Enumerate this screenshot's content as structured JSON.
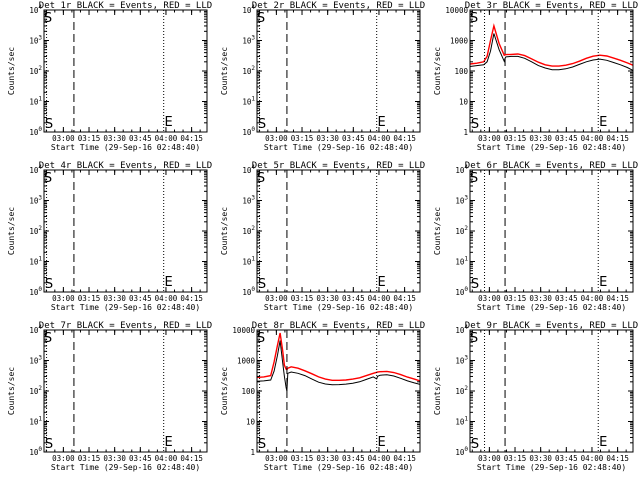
{
  "chart_data": [
    {
      "type": "line",
      "title": "Det 1r BLACK = Events, RED = LLD",
      "xlabel": "Start Time (29-Sep-16 02:48:40)",
      "ylabel": "Counts/sec",
      "x_unit": "minutes after 02:48:40",
      "xlim": [
        0,
        95.33
      ],
      "xtick_labels": [
        "03:00",
        "03:15",
        "03:30",
        "03:45",
        "04:00",
        "04:15"
      ],
      "xtick_values": [
        11.33,
        26.33,
        41.33,
        56.33,
        71.33,
        86.33
      ],
      "yscale": "log",
      "ylim": [
        1,
        10000
      ],
      "ytick_labels": [
        "10^0",
        "10^1",
        "10^2",
        "10^3",
        "10^4"
      ],
      "ytick_values": [
        1,
        10,
        100,
        1000,
        10000
      ],
      "vlines": [
        {
          "x": 1.5,
          "style": "dotted"
        },
        {
          "x": 17.5,
          "style": "dashed"
        },
        {
          "x": 70.0,
          "style": "dotted"
        }
      ],
      "markers": [
        {
          "label": "S",
          "x": 0.5
        },
        {
          "label": "E",
          "x": 70.5
        }
      ],
      "series": []
    },
    {
      "type": "line",
      "title": "Det 2r BLACK = Events, RED = LLD",
      "xlabel": "Start Time (29-Sep-16 02:48:40)",
      "ylabel": "Counts/sec",
      "x_unit": "minutes after 02:48:40",
      "xlim": [
        0,
        95.33
      ],
      "xtick_labels": [
        "03:00",
        "03:15",
        "03:30",
        "03:45",
        "04:00",
        "04:15"
      ],
      "xtick_values": [
        11.33,
        26.33,
        41.33,
        56.33,
        71.33,
        86.33
      ],
      "yscale": "log",
      "ylim": [
        1,
        10000
      ],
      "ytick_labels": [
        "10^0",
        "10^1",
        "10^2",
        "10^3",
        "10^4"
      ],
      "ytick_values": [
        1,
        10,
        100,
        1000,
        10000
      ],
      "vlines": [
        {
          "x": 1.5,
          "style": "dotted"
        },
        {
          "x": 17.5,
          "style": "dashed"
        },
        {
          "x": 70.0,
          "style": "dotted"
        }
      ],
      "markers": [
        {
          "label": "S",
          "x": 0.5
        },
        {
          "label": "E",
          "x": 70.5
        }
      ],
      "series": []
    },
    {
      "type": "line",
      "title": "Det 3r BLACK = Events, RED = LLD",
      "xlabel": "Start Time (29-Sep-16 02:48:40)",
      "ylabel": "Counts/sec",
      "x_unit": "minutes after 02:48:40",
      "xlim": [
        0,
        95.33
      ],
      "xtick_labels": [
        "03:00",
        "03:15",
        "03:30",
        "03:45",
        "04:00",
        "04:15"
      ],
      "xtick_values": [
        11.33,
        26.33,
        41.33,
        56.33,
        71.33,
        86.33
      ],
      "yscale": "log",
      "ylim": [
        1,
        10000
      ],
      "ytick_labels": [
        "1",
        "10",
        "100",
        "1000",
        "10000"
      ],
      "ytick_values": [
        1,
        10,
        100,
        1000,
        10000
      ],
      "vlines": [
        {
          "x": 8.5,
          "style": "dotted"
        },
        {
          "x": 20.5,
          "style": "dashed"
        },
        {
          "x": 75.0,
          "style": "dotted"
        }
      ],
      "markers": [
        {
          "label": "S",
          "x": 0.5
        },
        {
          "label": "E",
          "x": 75.5
        }
      ],
      "series": [
        {
          "name": "Events",
          "color": "#000000",
          "x": [
            0,
            4,
            8,
            10,
            12,
            14,
            17,
            20,
            20.5,
            21,
            24,
            28,
            32,
            36,
            40,
            44,
            48,
            52,
            56,
            60,
            64,
            68,
            72,
            76,
            80,
            84,
            88,
            92,
            95.33
          ],
          "y": [
            140,
            150,
            160,
            200,
            450,
            1700,
            500,
            210,
            260,
            290,
            300,
            300,
            260,
            200,
            150,
            125,
            110,
            110,
            118,
            135,
            165,
            200,
            230,
            245,
            225,
            190,
            160,
            130,
            105
          ]
        },
        {
          "name": "LLD",
          "color": "#ff0000",
          "x": [
            0,
            4,
            8,
            10,
            12,
            14,
            17,
            20,
            20.5,
            21,
            24,
            28,
            32,
            36,
            40,
            44,
            48,
            52,
            56,
            60,
            64,
            68,
            72,
            76,
            80,
            84,
            88,
            92,
            95.33
          ],
          "y": [
            170,
            180,
            200,
            300,
            1000,
            3000,
            800,
            330,
            340,
            345,
            350,
            360,
            320,
            250,
            195,
            160,
            145,
            145,
            155,
            175,
            210,
            260,
            305,
            330,
            310,
            265,
            225,
            185,
            155
          ]
        }
      ]
    },
    {
      "type": "line",
      "title": "Det 4r BLACK = Events, RED = LLD",
      "xlabel": "Start Time (29-Sep-16 02:48:40)",
      "ylabel": "Counts/sec",
      "x_unit": "minutes after 02:48:40",
      "xlim": [
        0,
        95.33
      ],
      "xtick_labels": [
        "03:00",
        "03:15",
        "03:30",
        "03:45",
        "04:00",
        "04:15"
      ],
      "xtick_values": [
        11.33,
        26.33,
        41.33,
        56.33,
        71.33,
        86.33
      ],
      "yscale": "log",
      "ylim": [
        1,
        10000
      ],
      "ytick_labels": [
        "10^0",
        "10^1",
        "10^2",
        "10^3",
        "10^4"
      ],
      "ytick_values": [
        1,
        10,
        100,
        1000,
        10000
      ],
      "vlines": [
        {
          "x": 1.5,
          "style": "dotted"
        },
        {
          "x": 17.5,
          "style": "dashed"
        },
        {
          "x": 70.0,
          "style": "dotted"
        }
      ],
      "markers": [
        {
          "label": "S",
          "x": 0.5
        },
        {
          "label": "E",
          "x": 70.5
        }
      ],
      "series": []
    },
    {
      "type": "line",
      "title": "Det 5r BLACK = Events, RED = LLD",
      "xlabel": "Start Time (29-Sep-16 02:48:40)",
      "ylabel": "Counts/sec",
      "x_unit": "minutes after 02:48:40",
      "xlim": [
        0,
        95.33
      ],
      "xtick_labels": [
        "03:00",
        "03:15",
        "03:30",
        "03:45",
        "04:00",
        "04:15"
      ],
      "xtick_values": [
        11.33,
        26.33,
        41.33,
        56.33,
        71.33,
        86.33
      ],
      "yscale": "log",
      "ylim": [
        1,
        10000
      ],
      "ytick_labels": [
        "10^0",
        "10^1",
        "10^2",
        "10^3",
        "10^4"
      ],
      "ytick_values": [
        1,
        10,
        100,
        1000,
        10000
      ],
      "vlines": [
        {
          "x": 1.5,
          "style": "dotted"
        },
        {
          "x": 17.5,
          "style": "dashed"
        },
        {
          "x": 70.0,
          "style": "dotted"
        }
      ],
      "markers": [
        {
          "label": "S",
          "x": 0.5
        },
        {
          "label": "E",
          "x": 70.5
        }
      ],
      "series": []
    },
    {
      "type": "line",
      "title": "Det 6r BLACK = Events, RED = LLD",
      "xlabel": "Start Time (29-Sep-16 02:48:40)",
      "ylabel": "Counts/sec",
      "x_unit": "minutes after 02:48:40",
      "xlim": [
        0,
        95.33
      ],
      "xtick_labels": [
        "03:00",
        "03:15",
        "03:30",
        "03:45",
        "04:00",
        "04:15"
      ],
      "xtick_values": [
        11.33,
        26.33,
        41.33,
        56.33,
        71.33,
        86.33
      ],
      "yscale": "log",
      "ylim": [
        1,
        10000
      ],
      "ytick_labels": [
        "10^0",
        "10^1",
        "10^2",
        "10^3",
        "10^4"
      ],
      "ytick_values": [
        1,
        10,
        100,
        1000,
        10000
      ],
      "vlines": [
        {
          "x": 8.5,
          "style": "dotted"
        },
        {
          "x": 20.5,
          "style": "dashed"
        },
        {
          "x": 75.0,
          "style": "dotted"
        }
      ],
      "markers": [
        {
          "label": "S",
          "x": 0.5
        },
        {
          "label": "E",
          "x": 75.5
        }
      ],
      "series": []
    },
    {
      "type": "line",
      "title": "Det 7r BLACK = Events, RED = LLD",
      "xlabel": "Start Time (29-Sep-16 02:48:40)",
      "ylabel": "Counts/sec",
      "x_unit": "minutes after 02:48:40",
      "xlim": [
        0,
        95.33
      ],
      "xtick_labels": [
        "03:00",
        "03:15",
        "03:30",
        "03:45",
        "04:00",
        "04:15"
      ],
      "xtick_values": [
        11.33,
        26.33,
        41.33,
        56.33,
        71.33,
        86.33
      ],
      "yscale": "log",
      "ylim": [
        1,
        10000
      ],
      "ytick_labels": [
        "10^0",
        "10^1",
        "10^2",
        "10^3",
        "10^4"
      ],
      "ytick_values": [
        1,
        10,
        100,
        1000,
        10000
      ],
      "vlines": [
        {
          "x": 1.5,
          "style": "dotted"
        },
        {
          "x": 17.5,
          "style": "dashed"
        },
        {
          "x": 70.0,
          "style": "dotted"
        }
      ],
      "markers": [
        {
          "label": "S",
          "x": 0.5
        },
        {
          "label": "E",
          "x": 70.5
        }
      ],
      "series": []
    },
    {
      "type": "line",
      "title": "Det 8r BLACK = Events, RED = LLD",
      "xlabel": "Start Time (29-Sep-16 02:48:40)",
      "ylabel": "Counts/sec",
      "x_unit": "minutes after 02:48:40",
      "xlim": [
        0,
        95.33
      ],
      "xtick_labels": [
        "03:00",
        "03:15",
        "03:30",
        "03:45",
        "04:00",
        "04:15"
      ],
      "xtick_values": [
        11.33,
        26.33,
        41.33,
        56.33,
        71.33,
        86.33
      ],
      "yscale": "log",
      "ylim": [
        1,
        10000
      ],
      "ytick_labels": [
        "1",
        "10",
        "100",
        "1000",
        "10000"
      ],
      "ytick_values": [
        1,
        10,
        100,
        1000,
        10000
      ],
      "vlines": [
        {
          "x": 1.5,
          "style": "dotted"
        },
        {
          "x": 17.5,
          "style": "dashed"
        },
        {
          "x": 70.0,
          "style": "dotted"
        }
      ],
      "markers": [
        {
          "label": "S",
          "x": 0.5
        },
        {
          "label": "E",
          "x": 70.5
        }
      ],
      "series": [
        {
          "name": "Events",
          "color": "#000000",
          "x": [
            0,
            4,
            8,
            10,
            12,
            13.5,
            15,
            16,
            17,
            17.5,
            18,
            20,
            24,
            28,
            32,
            36,
            40,
            44,
            48,
            52,
            56,
            60,
            64,
            68,
            70,
            70.5,
            72,
            76,
            80,
            84,
            88,
            92,
            95.33
          ],
          "y": [
            210,
            215,
            230,
            450,
            1500,
            4500,
            900,
            300,
            130,
            100,
            380,
            420,
            380,
            320,
            250,
            195,
            170,
            160,
            162,
            168,
            180,
            200,
            240,
            290,
            250,
            300,
            330,
            340,
            310,
            260,
            215,
            185,
            165
          ]
        },
        {
          "name": "LLD",
          "color": "#ff0000",
          "x": [
            0,
            4,
            8,
            10,
            12,
            13.5,
            15,
            16,
            17,
            17.5,
            18,
            20,
            24,
            28,
            32,
            36,
            40,
            44,
            48,
            52,
            56,
            60,
            64,
            68,
            70,
            70.5,
            72,
            76,
            80,
            84,
            88,
            92,
            95.33
          ],
          "y": [
            280,
            290,
            320,
            900,
            3200,
            8000,
            2200,
            700,
            520,
            500,
            560,
            620,
            560,
            460,
            370,
            290,
            245,
            225,
            225,
            230,
            245,
            270,
            320,
            380,
            410,
            420,
            430,
            440,
            405,
            345,
            285,
            245,
            215
          ]
        }
      ]
    },
    {
      "type": "line",
      "title": "Det 9r BLACK = Events, RED = LLD",
      "xlabel": "Start Time (29-Sep-16 02:48:40)",
      "ylabel": "Counts/sec",
      "x_unit": "minutes after 02:48:40",
      "xlim": [
        0,
        95.33
      ],
      "xtick_labels": [
        "03:00",
        "03:15",
        "03:30",
        "03:45",
        "04:00",
        "04:15"
      ],
      "xtick_values": [
        11.33,
        26.33,
        41.33,
        56.33,
        71.33,
        86.33
      ],
      "yscale": "log",
      "ylim": [
        1,
        10000
      ],
      "ytick_labels": [
        "10^0",
        "10^1",
        "10^2",
        "10^3",
        "10^4"
      ],
      "ytick_values": [
        1,
        10,
        100,
        1000,
        10000
      ],
      "vlines": [
        {
          "x": 8.5,
          "style": "dotted"
        },
        {
          "x": 20.5,
          "style": "dashed"
        },
        {
          "x": 75.0,
          "style": "dotted"
        }
      ],
      "markers": [
        {
          "label": "S",
          "x": 0.5
        },
        {
          "label": "E",
          "x": 75.5
        }
      ],
      "series": []
    }
  ]
}
